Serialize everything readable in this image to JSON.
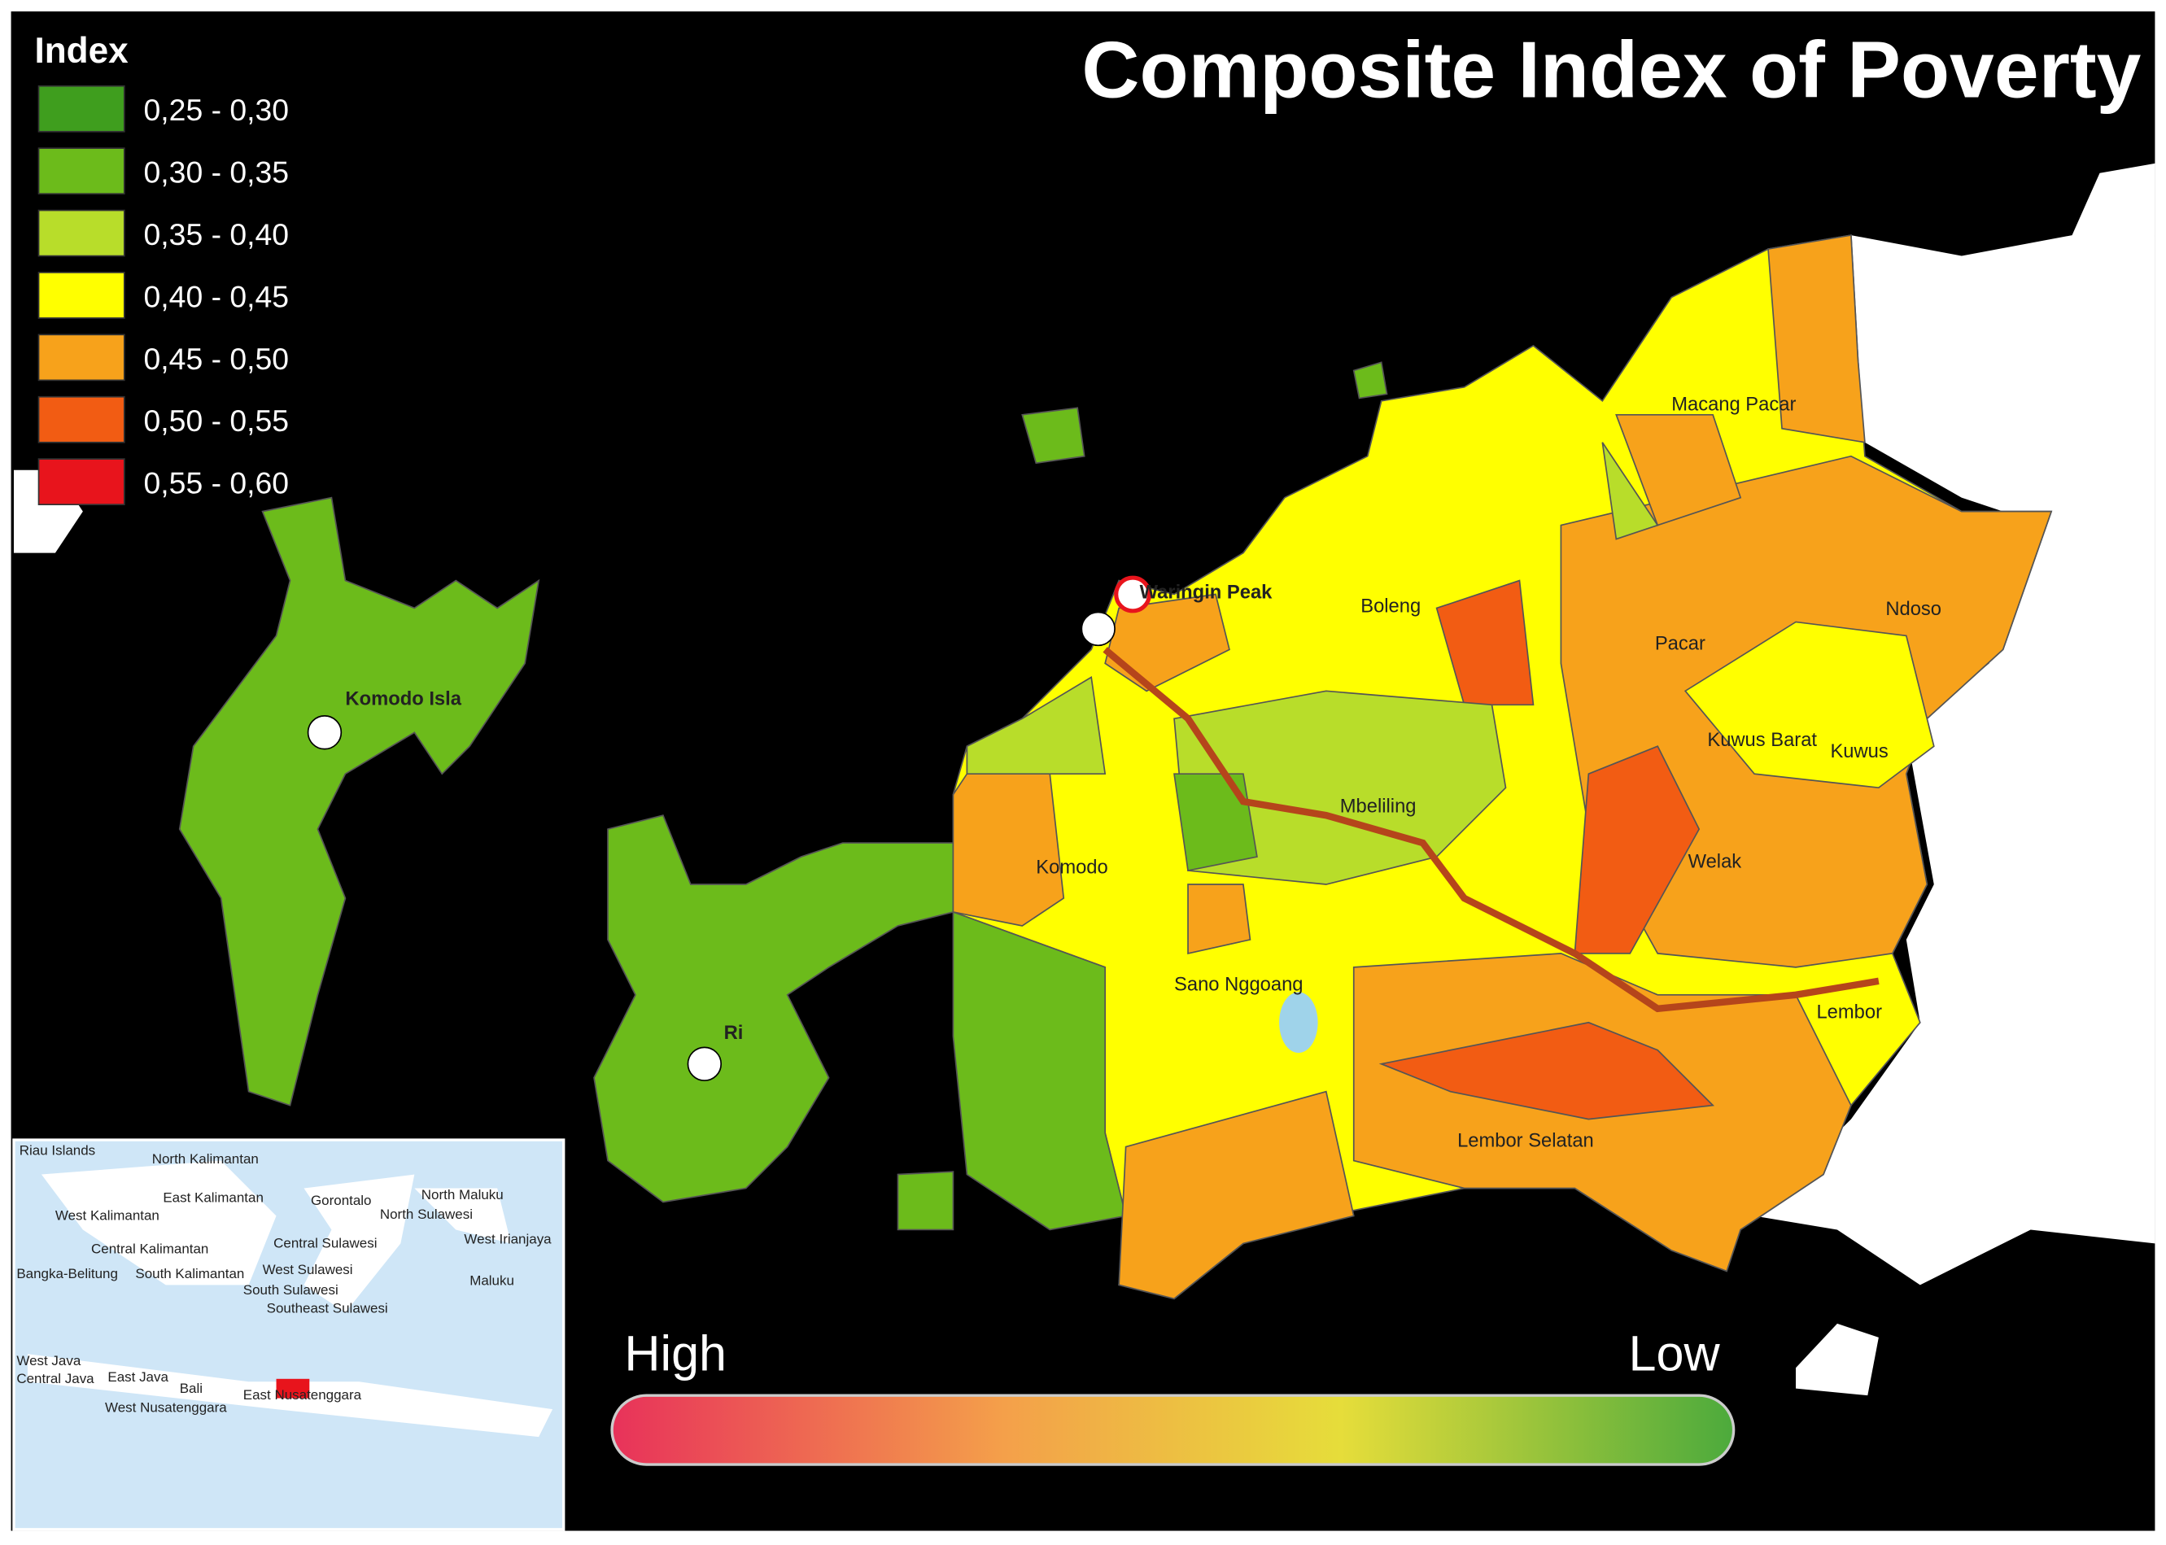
{
  "title": "Composite Index of Poverty",
  "legend": {
    "title": "Index",
    "items": [
      {
        "label": "0,25 - 0,30",
        "color": "#3f9e1e"
      },
      {
        "label": "0,30 - 0,35",
        "color": "#6cbb1b"
      },
      {
        "label": "0,35 - 0,40",
        "color": "#b8dd2a"
      },
      {
        "label": "0,40 - 0,45",
        "color": "#ffff00"
      },
      {
        "label": "0,45 - 0,50",
        "color": "#f7a21b"
      },
      {
        "label": "0,50 - 0,55",
        "color": "#f25c13"
      },
      {
        "label": "0,55 - 0,60",
        "color": "#e8141c"
      }
    ]
  },
  "places": [
    "Waringin Peak",
    "Komodo Isla",
    "Ri",
    "Boleng",
    "Macang Pacar",
    "Pacar",
    "Ndoso",
    "Kuwus Barat",
    "Kuwus",
    "Mbeliling",
    "Komodo",
    "Welak",
    "Sano Nggoang",
    "Lembor",
    "Lembor Selatan"
  ],
  "inset_labels": [
    "Riau Islands",
    "North Kalimantan",
    "East Kalimantan",
    "Gorontalo",
    "North Maluku",
    "West Kalimantan",
    "North Sulawesi",
    "Central Kalimantan",
    "Central Sulawesi",
    "West Irianjaya",
    "Bangka-Belitung",
    "South Kalimantan",
    "West Sulawesi",
    "Maluku",
    "South Sulawesi",
    "Southeast Sulawesi",
    "West Java",
    "Central Java",
    "East Java",
    "Bali",
    "West Nusatenggara",
    "East Nusatenggara"
  ],
  "scale": {
    "high": "High",
    "low": "Low"
  }
}
